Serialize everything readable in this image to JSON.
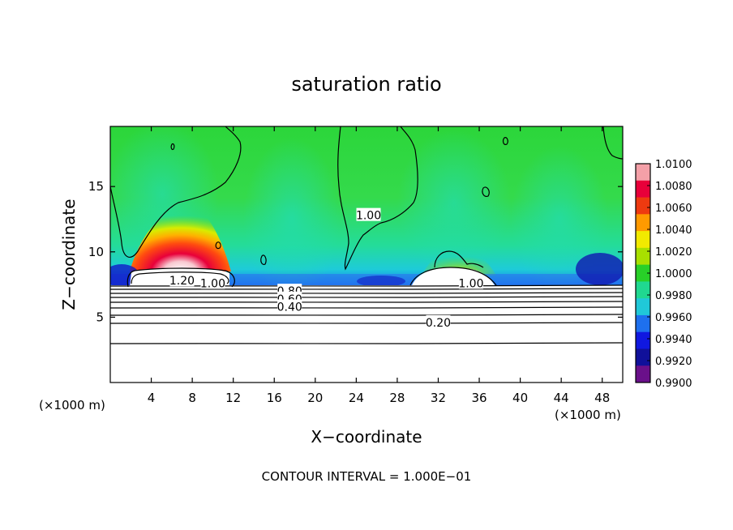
{
  "chart_data": {
    "type": "heatmap",
    "title": "saturation ratio",
    "xlabel": "X−coordinate",
    "ylabel": "Z−coordinate",
    "x_unit": "(×1000 m)",
    "x_unit_right": "(×1000 m)",
    "note": "CONTOUR INTERVAL = 1.000E−01",
    "xlim": [
      0,
      50
    ],
    "ylim": [
      0,
      19.6
    ],
    "x_ticks": [
      4,
      8,
      12,
      16,
      20,
      24,
      28,
      32,
      36,
      40,
      44,
      48
    ],
    "y_ticks": [
      5,
      10,
      15
    ],
    "colorbar": {
      "range": [
        0.99,
        1.01
      ],
      "ticks": [
        "1.0100",
        "1.0080",
        "1.0060",
        "1.0040",
        "1.0020",
        "1.0000",
        "0.9980",
        "0.9960",
        "0.9940",
        "0.9920",
        "0.9900"
      ],
      "colors": [
        "#f4a0a8",
        "#e8003a",
        "#ee3a10",
        "#ff9a00",
        "#f2ea00",
        "#a8e000",
        "#28d028",
        "#20d890",
        "#20c8d8",
        "#1e70ee",
        "#1018e0",
        "#10109a",
        "#6a108a"
      ]
    },
    "contour_interval": 0.1,
    "contour_labels": [
      {
        "text": "1.20",
        "x": 7.0,
        "z": 7.8
      },
      {
        "text": "1.00",
        "x": 10.0,
        "z": 7.6
      },
      {
        "text": "1.00",
        "x": 25.2,
        "z": 12.8
      },
      {
        "text": "1.00",
        "x": 35.2,
        "z": 7.6
      },
      {
        "text": "0.80",
        "x": 17.5,
        "z": 7.0
      },
      {
        "text": "0.60",
        "x": 17.5,
        "z": 6.4
      },
      {
        "text": "0.40",
        "x": 17.5,
        "z": 5.8
      },
      {
        "text": "0.20",
        "x": 32.0,
        "z": 4.6
      }
    ]
  }
}
